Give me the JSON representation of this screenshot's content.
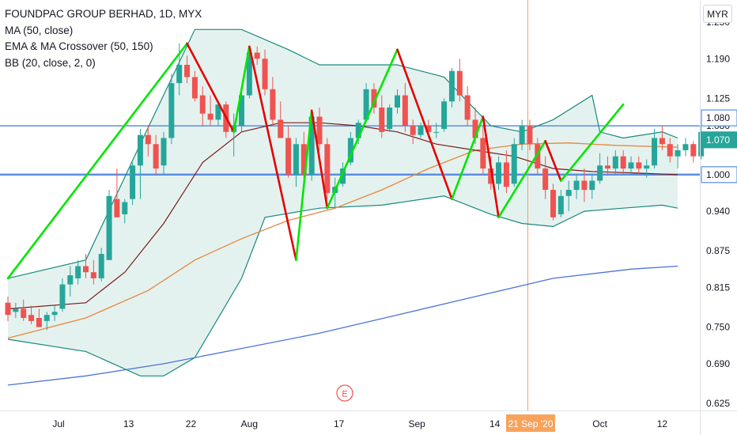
{
  "legend": {
    "symbol": "FOUNDPAC GROUP BERHAD, 1D, MYX",
    "ma": "MA (50, close)",
    "ema_ma": "EMA & MA Crossover (50, 150)",
    "bb": "BB (20, close, 2, 0)"
  },
  "currency_button": "MYR",
  "earnings_marker": "E",
  "colors": {
    "up": "#26a69a",
    "down": "#ef5350",
    "zigzag_up": "#00e600",
    "zigzag_down": "#e60000",
    "bollinger": "#18897f",
    "bollinger_fill": "#e4f2ef",
    "bb_basis": "#7a1c1c",
    "ema": "#e8863a",
    "ma150": "#4a74d8",
    "hline": "#5b8ee6",
    "crosshair": "#f0a060",
    "date_tag": "#f7a35c"
  },
  "chart_data": {
    "type": "candlestick",
    "y_axis": {
      "ticks": [
        "1.250",
        "1.190",
        "1.125",
        "1.080",
        "1.000",
        "0.940",
        "0.875",
        "0.815",
        "0.750",
        "0.690",
        "0.625"
      ],
      "range": [
        0.61,
        1.25
      ]
    },
    "x_axis": {
      "ticks": [
        "Jul",
        "13",
        "22",
        "Aug",
        "17",
        "Sep",
        "14",
        "Oct",
        "12"
      ],
      "highlight_label": "21 Sep '20"
    },
    "price_labels": [
      {
        "value": "1.080",
        "style": "outline"
      },
      {
        "value": "1.070",
        "style": "filled"
      },
      {
        "value": "1.000",
        "style": "outline"
      }
    ],
    "horizontal_lines": [
      1.08,
      1.0
    ],
    "candles": [
      [
        0.79,
        0.8,
        0.76,
        0.77
      ],
      [
        0.775,
        0.79,
        0.765,
        0.78
      ],
      [
        0.78,
        0.795,
        0.76,
        0.765
      ],
      [
        0.77,
        0.785,
        0.755,
        0.76
      ],
      [
        0.765,
        0.78,
        0.75,
        0.75
      ],
      [
        0.76,
        0.775,
        0.745,
        0.77
      ],
      [
        0.77,
        0.785,
        0.76,
        0.775
      ],
      [
        0.78,
        0.83,
        0.775,
        0.82
      ],
      [
        0.82,
        0.85,
        0.8,
        0.835
      ],
      [
        0.83,
        0.86,
        0.82,
        0.85
      ],
      [
        0.85,
        0.87,
        0.83,
        0.84
      ],
      [
        0.84,
        0.86,
        0.82,
        0.83
      ],
      [
        0.83,
        0.88,
        0.825,
        0.87
      ],
      [
        0.86,
        0.975,
        0.86,
        0.965
      ],
      [
        0.96,
        1.01,
        0.93,
        0.93
      ],
      [
        0.935,
        0.96,
        0.92,
        0.955
      ],
      [
        0.96,
        1.02,
        0.95,
        1.015
      ],
      [
        1.015,
        1.075,
        0.96,
        1.065
      ],
      [
        1.065,
        1.08,
        1.03,
        1.05
      ],
      [
        1.05,
        1.065,
        1.0,
        1.01
      ],
      [
        1.015,
        1.07,
        1.0,
        1.06
      ],
      [
        1.06,
        1.165,
        1.05,
        1.15
      ],
      [
        1.15,
        1.215,
        1.13,
        1.18
      ],
      [
        1.18,
        1.195,
        1.15,
        1.16
      ],
      [
        1.16,
        1.17,
        1.12,
        1.125
      ],
      [
        1.13,
        1.145,
        1.08,
        1.1
      ],
      [
        1.1,
        1.13,
        1.08,
        1.09
      ],
      [
        1.09,
        1.12,
        1.08,
        1.115
      ],
      [
        1.115,
        1.12,
        1.06,
        1.07
      ],
      [
        1.07,
        1.1,
        1.03,
        1.08
      ],
      [
        1.08,
        1.14,
        1.07,
        1.13
      ],
      [
        1.13,
        1.21,
        1.125,
        1.2
      ],
      [
        1.2,
        1.21,
        1.18,
        1.19
      ],
      [
        1.19,
        1.205,
        1.13,
        1.14
      ],
      [
        1.14,
        1.16,
        1.08,
        1.09
      ],
      [
        1.09,
        1.12,
        1.06,
        1.06
      ],
      [
        1.06,
        1.08,
        0.995,
        1.0
      ],
      [
        1.0,
        1.06,
        0.98,
        1.05
      ],
      [
        1.05,
        1.07,
        0.99,
        1.0
      ],
      [
        1.0,
        1.105,
        0.99,
        1.095
      ],
      [
        1.095,
        1.11,
        1.04,
        1.05
      ],
      [
        1.05,
        1.06,
        0.96,
        0.97
      ],
      [
        0.97,
        0.995,
        0.945,
        0.98
      ],
      [
        0.985,
        1.02,
        0.98,
        1.01
      ],
      [
        1.02,
        1.07,
        1.015,
        1.06
      ],
      [
        1.06,
        1.09,
        1.05,
        1.085
      ],
      [
        1.09,
        1.15,
        1.085,
        1.14
      ],
      [
        1.14,
        1.15,
        1.1,
        1.11
      ],
      [
        1.11,
        1.13,
        1.06,
        1.07
      ],
      [
        1.075,
        1.115,
        1.07,
        1.11
      ],
      [
        1.11,
        1.14,
        1.1,
        1.13
      ],
      [
        1.13,
        1.15,
        1.07,
        1.08
      ],
      [
        1.08,
        1.09,
        1.05,
        1.065
      ],
      [
        1.065,
        1.085,
        1.06,
        1.08
      ],
      [
        1.08,
        1.09,
        1.06,
        1.07
      ],
      [
        1.07,
        1.085,
        1.06,
        1.07
      ],
      [
        1.075,
        1.125,
        1.07,
        1.12
      ],
      [
        1.12,
        1.175,
        1.11,
        1.17
      ],
      [
        1.17,
        1.19,
        1.12,
        1.13
      ],
      [
        1.13,
        1.145,
        1.08,
        1.09
      ],
      [
        1.09,
        1.11,
        1.05,
        1.06
      ],
      [
        1.06,
        1.08,
        1.0,
        1.01
      ],
      [
        1.01,
        1.03,
        0.975,
        0.985
      ],
      [
        0.985,
        1.03,
        0.975,
        1.02
      ],
      [
        1.02,
        1.04,
        0.97,
        0.98
      ],
      [
        0.985,
        1.06,
        0.98,
        1.05
      ],
      [
        1.05,
        1.09,
        1.04,
        1.08
      ],
      [
        1.08,
        1.09,
        1.04,
        1.05
      ],
      [
        1.05,
        1.06,
        1.0,
        1.01
      ],
      [
        1.01,
        1.03,
        0.96,
        0.975
      ],
      [
        0.975,
        0.985,
        0.925,
        0.93
      ],
      [
        0.935,
        0.975,
        0.93,
        0.965
      ],
      [
        0.965,
        0.99,
        0.94,
        0.975
      ],
      [
        0.975,
        1.0,
        0.96,
        0.99
      ],
      [
        0.99,
        1.01,
        0.955,
        0.975
      ],
      [
        0.975,
        1.0,
        0.96,
        0.99
      ],
      [
        0.99,
        1.035,
        0.985,
        1.015
      ],
      [
        1.015,
        1.03,
        1.0,
        1.01
      ],
      [
        1.01,
        1.04,
        1.0,
        1.03
      ],
      [
        1.03,
        1.04,
        1.0,
        1.01
      ],
      [
        1.01,
        1.03,
        1.0,
        1.02
      ],
      [
        1.02,
        1.03,
        1.0,
        1.01
      ],
      [
        1.01,
        1.025,
        0.995,
        1.015
      ],
      [
        1.015,
        1.075,
        1.01,
        1.06
      ],
      [
        1.06,
        1.08,
        1.04,
        1.05
      ],
      [
        1.05,
        1.06,
        1.02,
        1.03
      ],
      [
        1.03,
        1.05,
        1.01,
        1.04
      ],
      [
        1.04,
        1.06,
        1.03,
        1.05
      ],
      [
        1.05,
        1.055,
        1.02,
        1.03
      ],
      [
        1.03,
        1.08,
        1.025,
        1.07
      ]
    ],
    "zigzag": [
      [
        0,
        0.83
      ],
      [
        23,
        1.215
      ],
      [
        29,
        1.07
      ],
      [
        31,
        1.21
      ],
      [
        37,
        0.86
      ],
      [
        39,
        1.105
      ],
      [
        41,
        0.945
      ],
      [
        50,
        1.205
      ],
      [
        57,
        0.96
      ],
      [
        61,
        1.095
      ],
      [
        63,
        0.93
      ],
      [
        69,
        1.055
      ],
      [
        71,
        0.99
      ],
      [
        79,
        1.115
      ]
    ],
    "bb_upper": [
      [
        0,
        0.83
      ],
      [
        10,
        0.86
      ],
      [
        17,
        1.05
      ],
      [
        24,
        1.238
      ],
      [
        30,
        1.238
      ],
      [
        36,
        1.205
      ],
      [
        40,
        1.18
      ],
      [
        50,
        1.18
      ],
      [
        56,
        1.16
      ],
      [
        62,
        1.08
      ],
      [
        66,
        1.07
      ],
      [
        70,
        1.09
      ],
      [
        75,
        1.13
      ],
      [
        76,
        1.07
      ],
      [
        79,
        1.06
      ],
      [
        84,
        1.07
      ],
      [
        86,
        1.06
      ]
    ],
    "bb_lower": [
      [
        0,
        0.73
      ],
      [
        10,
        0.71
      ],
      [
        17,
        0.67
      ],
      [
        20,
        0.67
      ],
      [
        24,
        0.7
      ],
      [
        30,
        0.83
      ],
      [
        33,
        0.93
      ],
      [
        40,
        0.945
      ],
      [
        48,
        0.95
      ],
      [
        56,
        0.965
      ],
      [
        62,
        0.935
      ],
      [
        66,
        0.92
      ],
      [
        70,
        0.915
      ],
      [
        74,
        0.94
      ],
      [
        79,
        0.945
      ],
      [
        84,
        0.95
      ],
      [
        86,
        0.945
      ]
    ],
    "bb_basis": [
      [
        0,
        0.78
      ],
      [
        10,
        0.79
      ],
      [
        15,
        0.84
      ],
      [
        20,
        0.92
      ],
      [
        25,
        1.02
      ],
      [
        30,
        1.07
      ],
      [
        35,
        1.085
      ],
      [
        40,
        1.085
      ],
      [
        45,
        1.08
      ],
      [
        50,
        1.07
      ],
      [
        55,
        1.05
      ],
      [
        60,
        1.04
      ],
      [
        65,
        1.03
      ],
      [
        70,
        1.01
      ],
      [
        75,
        1.005
      ],
      [
        80,
        1.003
      ],
      [
        86,
        1.0
      ]
    ],
    "ema_50": [
      [
        0,
        0.732
      ],
      [
        10,
        0.765
      ],
      [
        18,
        0.81
      ],
      [
        24,
        0.86
      ],
      [
        30,
        0.895
      ],
      [
        36,
        0.925
      ],
      [
        42,
        0.945
      ],
      [
        48,
        0.975
      ],
      [
        54,
        1.01
      ],
      [
        60,
        1.04
      ],
      [
        66,
        1.05
      ],
      [
        72,
        1.052
      ],
      [
        78,
        1.048
      ],
      [
        86,
        1.045
      ]
    ],
    "ma_150": [
      [
        0,
        0.655
      ],
      [
        10,
        0.67
      ],
      [
        20,
        0.69
      ],
      [
        30,
        0.715
      ],
      [
        40,
        0.74
      ],
      [
        50,
        0.77
      ],
      [
        60,
        0.8
      ],
      [
        70,
        0.83
      ],
      [
        80,
        0.845
      ],
      [
        86,
        0.85
      ]
    ]
  }
}
